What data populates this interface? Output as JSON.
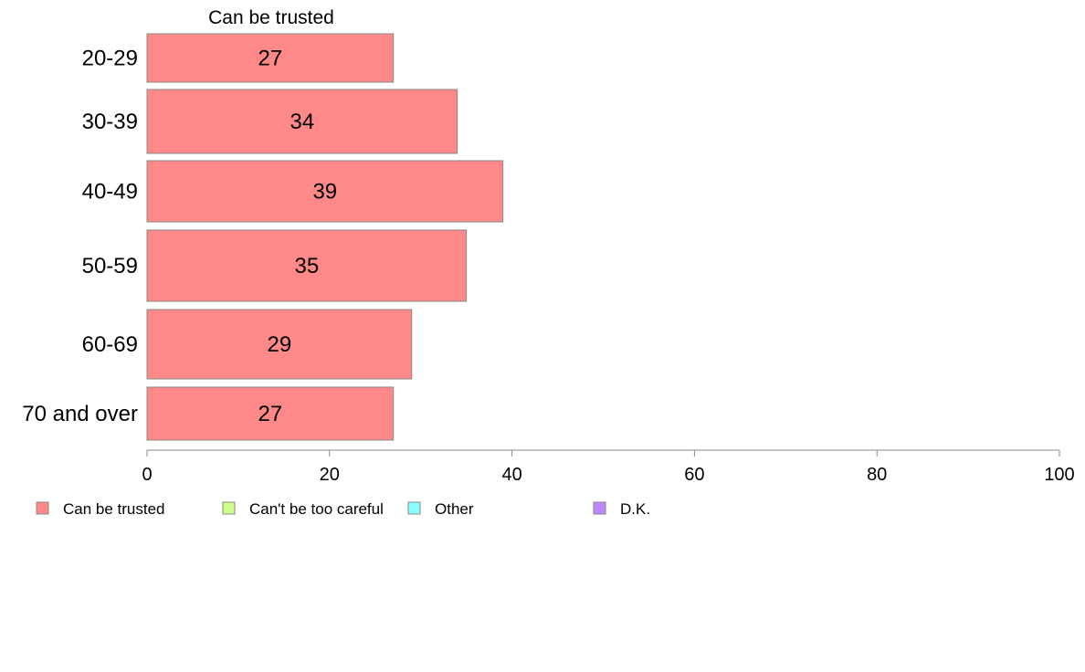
{
  "chart_data": {
    "type": "bar",
    "orientation": "horizontal",
    "title": "Can be trusted",
    "categories": [
      "20-29",
      "30-39",
      "40-49",
      "50-59",
      "60-69",
      "70 and over"
    ],
    "series": [
      {
        "name": "Can be trusted",
        "values": [
          27,
          34,
          39,
          35,
          29,
          27
        ],
        "color": "#ff8888"
      }
    ],
    "xlim": [
      0,
      100
    ],
    "x_ticks": [
      0,
      20,
      40,
      60,
      80,
      100
    ],
    "grid": false,
    "legend": {
      "position": "bottom-left",
      "entries": [
        {
          "label": "Can be trusted",
          "color": "#ff8888"
        },
        {
          "label": "Can't be too careful",
          "color": "#ccff88"
        },
        {
          "label": "Other",
          "color": "#88ffff"
        },
        {
          "label": "D.K.",
          "color": "#bb88ff"
        }
      ]
    }
  }
}
